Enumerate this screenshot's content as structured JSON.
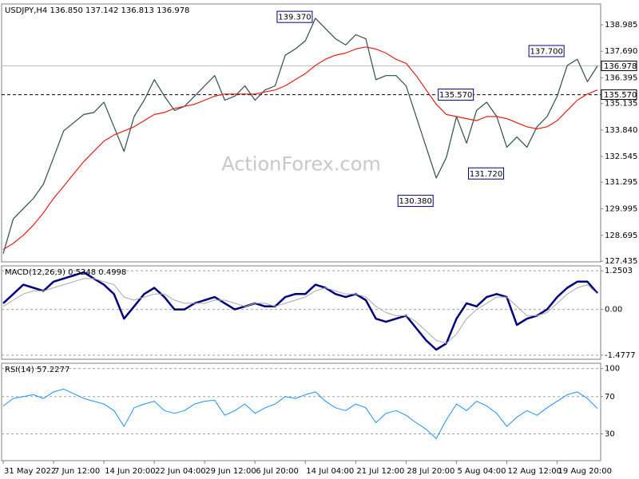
{
  "chart_data": [
    {
      "type": "line",
      "title": "USDJPY,H4 136.850 137.142 136.813 136.978",
      "watermark": "ActionForex.com",
      "ylim": [
        127.4,
        140.0
      ],
      "yticks": [
        {
          "value": 138.985,
          "label": "138.985"
        },
        {
          "value": 137.69,
          "label": "137.690"
        },
        {
          "value": 136.395,
          "label": "136.395"
        },
        {
          "value": 135.135,
          "label": "135.135"
        },
        {
          "value": 133.84,
          "label": "133.840"
        },
        {
          "value": 132.545,
          "label": "132.545"
        },
        {
          "value": 131.295,
          "label": "131.295"
        },
        {
          "value": 129.995,
          "label": "129.995"
        },
        {
          "value": 128.695,
          "label": "128.695"
        },
        {
          "value": 127.435,
          "label": "127.435"
        }
      ],
      "series": [
        {
          "color": "#2f4f4f",
          "line_width": 1.2,
          "values": [
            127.8,
            129.5,
            130.0,
            130.5,
            131.2,
            132.5,
            133.8,
            134.2,
            134.6,
            134.7,
            135.2,
            134.0,
            132.8,
            134.5,
            135.3,
            136.3,
            135.5,
            134.8,
            135.0,
            135.5,
            136.0,
            136.5,
            135.3,
            135.5,
            136.0,
            135.3,
            135.8,
            136.0,
            137.5,
            137.8,
            138.2,
            139.3,
            138.8,
            138.3,
            138.0,
            138.5,
            138.3,
            136.3,
            136.5,
            136.5,
            136.0,
            134.5,
            133.0,
            131.5,
            132.5,
            134.5,
            133.2,
            134.8,
            135.2,
            134.5,
            133.0,
            133.5,
            133.0,
            134.0,
            134.5,
            135.5,
            137.0,
            137.3,
            136.2,
            136.978
          ]
        },
        {
          "color": "#e0201b",
          "line_width": 1.2,
          "values": [
            128.0,
            128.3,
            128.7,
            129.2,
            129.8,
            130.5,
            131.1,
            131.7,
            132.3,
            132.8,
            133.3,
            133.6,
            133.8,
            134.0,
            134.3,
            134.6,
            134.7,
            134.9,
            135.0,
            135.1,
            135.3,
            135.5,
            135.6,
            135.6,
            135.6,
            135.6,
            135.7,
            135.8,
            136.0,
            136.3,
            136.6,
            137.0,
            137.3,
            137.5,
            137.6,
            137.8,
            137.9,
            137.8,
            137.6,
            137.3,
            137.1,
            136.5,
            135.8,
            135.1,
            134.6,
            134.5,
            134.4,
            134.3,
            134.5,
            134.5,
            134.4,
            134.2,
            134.0,
            133.9,
            134.0,
            134.3,
            134.8,
            135.3,
            135.6,
            135.8
          ]
        }
      ],
      "price_lines": [
        {
          "value": 136.978,
          "label": "136.978",
          "style": "solid",
          "color": "#c0c0c0"
        },
        {
          "value": 135.57,
          "label": "135.570",
          "style": "dashed",
          "color": "#000000"
        }
      ],
      "annotations": [
        {
          "value": 139.37,
          "label": "139.370",
          "x": 31
        },
        {
          "value": 137.7,
          "label": "137.700",
          "x": 56
        },
        {
          "value": 135.57,
          "label": "135.570",
          "x": 47
        },
        {
          "value": 131.72,
          "label": "131.720",
          "x": 50
        },
        {
          "value": 130.38,
          "label": "130.380",
          "x": 43
        }
      ]
    },
    {
      "type": "line",
      "title": "MACD(12,26,9) 0.5248 0.4998",
      "ylim": [
        -1.61,
        1.41
      ],
      "yticks": [
        1.2503,
        {
          "value": 0,
          "label": "0.00"
        },
        -1.4777
      ],
      "grid": "dashed",
      "series": [
        {
          "color": "#00007f",
          "line_width": 2.5,
          "values": [
            0.2,
            0.5,
            0.8,
            0.7,
            0.6,
            0.9,
            1.0,
            1.1,
            1.2,
            1.0,
            0.8,
            0.5,
            -0.3,
            0.1,
            0.5,
            0.7,
            0.4,
            0.0,
            0.0,
            0.2,
            0.3,
            0.4,
            0.2,
            0.0,
            0.1,
            0.2,
            0.1,
            0.1,
            0.4,
            0.5,
            0.5,
            0.8,
            0.7,
            0.5,
            0.4,
            0.5,
            0.3,
            -0.3,
            -0.4,
            -0.3,
            -0.2,
            -0.6,
            -1.0,
            -1.3,
            -1.1,
            -0.3,
            0.2,
            0.1,
            0.4,
            0.5,
            0.4,
            -0.5,
            -0.3,
            -0.2,
            0.0,
            0.4,
            0.7,
            0.9,
            0.9,
            0.5248
          ]
        },
        {
          "color": "#a9a9a9",
          "line_width": 1,
          "values": [
            0.1,
            0.3,
            0.5,
            0.6,
            0.6,
            0.7,
            0.8,
            0.9,
            1.0,
            1.0,
            0.9,
            0.8,
            0.4,
            0.3,
            0.4,
            0.5,
            0.5,
            0.3,
            0.2,
            0.2,
            0.2,
            0.3,
            0.3,
            0.2,
            0.1,
            0.2,
            0.2,
            0.1,
            0.2,
            0.3,
            0.4,
            0.6,
            0.7,
            0.6,
            0.5,
            0.5,
            0.4,
            0.1,
            -0.1,
            -0.2,
            -0.2,
            -0.4,
            -0.7,
            -1.0,
            -1.1,
            -0.8,
            -0.3,
            0.0,
            0.2,
            0.4,
            0.4,
            0.1,
            -0.2,
            -0.2,
            -0.1,
            0.2,
            0.5,
            0.7,
            0.8,
            0.4998
          ]
        }
      ]
    },
    {
      "type": "line",
      "title": "RSI(14) 57.2277",
      "ylim": [
        1.4,
        105.7
      ],
      "yticks": [
        100,
        70,
        30
      ],
      "grid": "dashed",
      "categories": [
        "31 May 2022",
        null,
        null,
        null,
        null,
        "7 Jun 12:00",
        null,
        null,
        null,
        null,
        "14 Jun 20:00",
        null,
        null,
        null,
        null,
        "22 Jun 04:00",
        null,
        null,
        null,
        null,
        "29 Jun 12:00",
        null,
        null,
        null,
        null,
        "6 Jul 20:00",
        null,
        null,
        null,
        null,
        "14 Jul 04:00",
        null,
        null,
        null,
        null,
        "21 Jul 12:00",
        null,
        null,
        null,
        null,
        "28 Jul 20:00",
        null,
        null,
        null,
        null,
        "5 Aug 04:00",
        null,
        null,
        null,
        null,
        "12 Aug 12:00",
        null,
        null,
        null,
        null,
        "19 Aug 20:00",
        null,
        null,
        null,
        null
      ],
      "series": [
        {
          "color": "#1e90ff",
          "line_width": 1,
          "values": [
            60,
            68,
            70,
            72,
            68,
            75,
            78,
            73,
            68,
            65,
            62,
            55,
            38,
            58,
            62,
            65,
            55,
            52,
            55,
            62,
            65,
            66,
            50,
            55,
            62,
            52,
            58,
            62,
            70,
            68,
            72,
            75,
            65,
            58,
            55,
            62,
            58,
            42,
            52,
            55,
            50,
            42,
            35,
            25,
            45,
            62,
            55,
            65,
            60,
            52,
            38,
            48,
            55,
            50,
            58,
            65,
            72,
            75,
            68,
            57.2277
          ]
        }
      ]
    }
  ]
}
